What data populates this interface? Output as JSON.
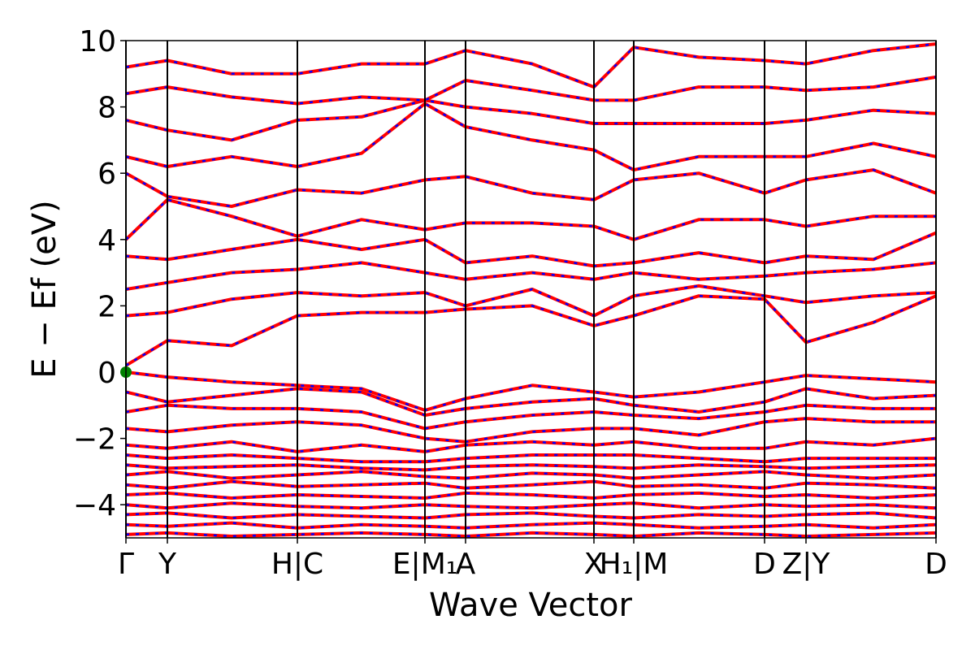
{
  "chart_data": {
    "type": "line",
    "x_label": "Wave Vector",
    "y_label": "E − Ef (eV)",
    "xlim": [
      0,
      9.97
    ],
    "ylim": [
      -5,
      10
    ],
    "xticks": [
      {
        "value": 0,
        "label": "Γ"
      },
      {
        "value": 0.51,
        "label": "Y"
      },
      {
        "value": 2.11,
        "label": "H|C"
      },
      {
        "value": 3.68,
        "label": "E|M₁"
      },
      {
        "value": 4.18,
        "label": "A"
      },
      {
        "value": 5.76,
        "label": "X"
      },
      {
        "value": 6.25,
        "label": "H₁|M"
      },
      {
        "value": 7.86,
        "label": "D"
      },
      {
        "value": 8.37,
        "label": "Z|Y"
      },
      {
        "value": 9.97,
        "label": "D"
      }
    ],
    "yticks": [
      {
        "value": -4,
        "label": "−4"
      },
      {
        "value": -2,
        "label": "−2"
      },
      0,
      2,
      4,
      6,
      8,
      10
    ],
    "symmetry_lines": true,
    "color": "#ff0000",
    "overlay_color": "#0000ff",
    "x": [
      0,
      0.51,
      1.3,
      2.11,
      2.9,
      3.68,
      4.18,
      5,
      5.76,
      6.25,
      7.05,
      7.86,
      8.37,
      9.2,
      9.97
    ],
    "series": [
      {
        "values": [
          0.2,
          0.95,
          0.8,
          1.7,
          1.8,
          1.8,
          1.9,
          2.0,
          1.4,
          1.7,
          2.3,
          2.2,
          0.9,
          1.5,
          2.3
        ]
      },
      {
        "values": [
          1.7,
          1.8,
          2.2,
          2.4,
          2.3,
          2.4,
          2.0,
          2.5,
          1.7,
          2.3,
          2.6,
          2.3,
          2.1,
          2.3,
          2.4
        ]
      },
      {
        "values": [
          2.5,
          2.7,
          3.0,
          3.1,
          3.3,
          3.0,
          2.8,
          3.0,
          2.8,
          3.0,
          2.8,
          2.9,
          3.0,
          3.1,
          3.3
        ]
      },
      {
        "values": [
          3.5,
          3.4,
          3.7,
          4.0,
          3.7,
          4.0,
          3.3,
          3.5,
          3.2,
          3.3,
          3.6,
          3.3,
          3.5,
          3.4,
          4.2
        ]
      },
      {
        "values": [
          4.0,
          5.2,
          4.7,
          4.1,
          4.6,
          4.3,
          4.5,
          4.5,
          4.4,
          4.0,
          4.6,
          4.6,
          4.4,
          4.7,
          4.7
        ]
      },
      {
        "values": [
          6.0,
          5.3,
          5.0,
          5.5,
          5.4,
          5.8,
          5.9,
          5.4,
          5.2,
          5.8,
          6.0,
          5.4,
          5.8,
          6.1,
          5.4
        ]
      },
      {
        "values": [
          6.5,
          6.2,
          6.5,
          6.2,
          6.6,
          8.1,
          7.4,
          7.0,
          6.7,
          6.1,
          6.5,
          6.5,
          6.5,
          6.9,
          6.5
        ]
      },
      {
        "values": [
          7.6,
          7.3,
          7.0,
          7.6,
          7.7,
          8.2,
          8.0,
          7.8,
          7.5,
          7.5,
          7.5,
          7.5,
          7.6,
          7.9,
          7.8
        ]
      },
      {
        "values": [
          8.4,
          8.6,
          8.3,
          8.1,
          8.3,
          8.2,
          8.8,
          8.5,
          8.2,
          8.2,
          8.6,
          8.6,
          8.5,
          8.6,
          8.9
        ]
      },
      {
        "values": [
          9.2,
          9.4,
          9.0,
          9.0,
          9.3,
          9.3,
          9.7,
          9.3,
          8.6,
          9.8,
          9.5,
          9.4,
          9.3,
          9.7,
          9.9
        ]
      },
      {
        "values": [
          0,
          -0.15,
          -0.3,
          -0.4,
          -0.5,
          -1.15,
          -0.8,
          -0.4,
          -0.6,
          -0.75,
          -0.6,
          -0.3,
          -0.1,
          -0.2,
          -0.3
        ]
      },
      {
        "values": [
          -0.6,
          -0.9,
          -0.7,
          -0.5,
          -0.6,
          -1.3,
          -1.1,
          -0.9,
          -0.8,
          -1.0,
          -1.2,
          -0.9,
          -0.5,
          -0.8,
          -0.7
        ]
      },
      {
        "values": [
          -1.2,
          -1.0,
          -1.1,
          -1.1,
          -1.2,
          -1.7,
          -1.5,
          -1.3,
          -1.2,
          -1.3,
          -1.4,
          -1.2,
          -1.0,
          -1.1,
          -1.1
        ]
      },
      {
        "values": [
          -1.7,
          -1.8,
          -1.6,
          -1.5,
          -1.6,
          -2.0,
          -2.1,
          -1.8,
          -1.7,
          -1.7,
          -1.9,
          -1.5,
          -1.4,
          -1.5,
          -1.5
        ]
      },
      {
        "values": [
          -2.2,
          -2.3,
          -2.1,
          -2.4,
          -2.2,
          -2.4,
          -2.2,
          -2.1,
          -2.2,
          -2.1,
          -2.3,
          -2.3,
          -2.1,
          -2.2,
          -2.0
        ]
      },
      {
        "values": [
          -2.5,
          -2.6,
          -2.5,
          -2.6,
          -2.7,
          -2.7,
          -2.6,
          -2.5,
          -2.5,
          -2.5,
          -2.6,
          -2.7,
          -2.6,
          -2.6,
          -2.6
        ]
      },
      {
        "values": [
          -2.8,
          -2.9,
          -2.85,
          -2.8,
          -2.9,
          -2.95,
          -2.85,
          -2.8,
          -2.85,
          -2.9,
          -2.8,
          -2.85,
          -2.9,
          -2.85,
          -2.8
        ]
      },
      {
        "values": [
          -3.1,
          -3.0,
          -3.2,
          -3.1,
          -3.0,
          -3.15,
          -3.2,
          -3.05,
          -3.1,
          -3.2,
          -3.1,
          -3.0,
          -3.1,
          -3.2,
          -3.1
        ]
      },
      {
        "values": [
          -3.4,
          -3.5,
          -3.3,
          -3.45,
          -3.4,
          -3.35,
          -3.5,
          -3.4,
          -3.3,
          -3.45,
          -3.4,
          -3.5,
          -3.35,
          -3.4,
          -3.5
        ]
      },
      {
        "values": [
          -3.7,
          -3.65,
          -3.8,
          -3.7,
          -3.75,
          -3.8,
          -3.65,
          -3.7,
          -3.8,
          -3.7,
          -3.65,
          -3.75,
          -3.7,
          -3.8,
          -3.7
        ]
      },
      {
        "values": [
          -4.0,
          -4.1,
          -3.95,
          -4.05,
          -4.1,
          -4.0,
          -4.05,
          -4.1,
          -4.0,
          -3.95,
          -4.1,
          -4.0,
          -4.05,
          -4.0,
          -4.1
        ]
      },
      {
        "values": [
          -4.3,
          -4.25,
          -4.4,
          -4.3,
          -4.35,
          -4.4,
          -4.3,
          -4.25,
          -4.35,
          -4.4,
          -4.3,
          -4.35,
          -4.3,
          -4.25,
          -4.4
        ]
      },
      {
        "values": [
          -4.6,
          -4.65,
          -4.55,
          -4.7,
          -4.6,
          -4.65,
          -4.7,
          -4.6,
          -4.55,
          -4.6,
          -4.7,
          -4.65,
          -4.6,
          -4.7,
          -4.6
        ]
      },
      {
        "values": [
          -4.9,
          -4.85,
          -4.95,
          -4.9,
          -4.85,
          -4.9,
          -4.95,
          -4.85,
          -4.9,
          -4.95,
          -4.85,
          -4.9,
          -4.95,
          -4.9,
          -4.85
        ]
      }
    ],
    "points": {
      "x": [
        0
      ],
      "y": [
        0
      ],
      "color": "#008000"
    }
  }
}
